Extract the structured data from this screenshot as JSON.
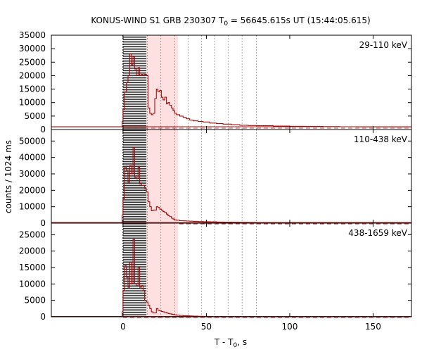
{
  "chart_data": {
    "type": "line",
    "title_main": "KONUS-WIND S1 GRB 230307 T",
    "title_sub": "0",
    "title_rest": " = 56645.615s UT (15:44:05.615)",
    "xlabel_main": "T - T",
    "xlabel_sub": "0",
    "xlabel_rest": ", s",
    "ylabel": "counts / 1024 ms",
    "xlim": [
      -43,
      173
    ],
    "xticks": [
      0,
      50,
      100,
      150
    ],
    "colors": {
      "series": "#a01010",
      "background_line": "#a01010",
      "shade": "#ffe0e0",
      "hatch": "#303030",
      "trigger_line": "#000000",
      "interval_lines": "#909090"
    },
    "intervals": {
      "hatch_range": [
        0,
        14
      ],
      "shade_range": [
        14,
        33
      ],
      "boundaries": [
        14.5,
        22.7,
        31,
        39,
        47,
        55,
        63,
        71.4,
        80
      ]
    },
    "panels": [
      {
        "label": "29-110 keV",
        "ylim": [
          0,
          35000
        ],
        "yticks": [
          0,
          5000,
          10000,
          15000,
          20000,
          25000,
          30000,
          35000
        ],
        "background": 1050,
        "t": [
          -43,
          -1,
          -0.5,
          0,
          1,
          2,
          3,
          4,
          5,
          6,
          7,
          8,
          9,
          10,
          11,
          12,
          13,
          14,
          15,
          16,
          17,
          18,
          19,
          20,
          21,
          22,
          23,
          24,
          25,
          26,
          27,
          28,
          29,
          30,
          31,
          32,
          34,
          36,
          38,
          40,
          42,
          45,
          48,
          52,
          56,
          60,
          65,
          70,
          75,
          80,
          90,
          100,
          110,
          120,
          130,
          140,
          173
        ],
        "counts": [
          1000,
          1000,
          3000,
          7500,
          14000,
          17500,
          20000,
          28000,
          24000,
          27000,
          22500,
          20000,
          23000,
          20000,
          20500,
          20000,
          20500,
          20000,
          8000,
          6000,
          5500,
          6000,
          11500,
          15000,
          14000,
          14500,
          12000,
          11000,
          12000,
          9500,
          10000,
          9000,
          8000,
          7000,
          6000,
          5500,
          5000,
          4500,
          4000,
          3500,
          3200,
          3000,
          2800,
          2400,
          2200,
          2000,
          1800,
          1600,
          1500,
          1400,
          1300,
          1200,
          1150,
          1100,
          1050,
          1000,
          1000
        ]
      },
      {
        "label": "110-438 keV",
        "ylim": [
          0,
          57000
        ],
        "yticks": [
          0,
          10000,
          20000,
          30000,
          40000,
          50000
        ],
        "background": 400,
        "t": [
          -43,
          -1,
          -0.5,
          0,
          1,
          2,
          3,
          4,
          5,
          6,
          7,
          8,
          9,
          10,
          11,
          12,
          13,
          14,
          15,
          16,
          17,
          18,
          19,
          20,
          21,
          22,
          23,
          24,
          25,
          26,
          27,
          28,
          29,
          30,
          31,
          32,
          34,
          36,
          38,
          40,
          42,
          45,
          48,
          52,
          56,
          60,
          65,
          70,
          75,
          80,
          90,
          100,
          110,
          120,
          130,
          140,
          173
        ],
        "counts": [
          400,
          400,
          5000,
          15000,
          34000,
          32000,
          25000,
          35000,
          30000,
          46000,
          28000,
          27000,
          34000,
          24000,
          23000,
          23000,
          21000,
          19000,
          13000,
          10000,
          7500,
          8000,
          8000,
          10000,
          9500,
          8500,
          8000,
          7000,
          6500,
          5500,
          4500,
          4000,
          3000,
          2500,
          2000,
          1800,
          1500,
          1400,
          1300,
          1200,
          1100,
          1000,
          900,
          800,
          700,
          600,
          550,
          500,
          450,
          420,
          400,
          400,
          400,
          400,
          400,
          400,
          400
        ]
      },
      {
        "label": "438-1659 keV",
        "ylim": [
          0,
          28500
        ],
        "yticks": [
          0,
          5000,
          10000,
          15000,
          20000,
          25000
        ],
        "background": 100,
        "t": [
          -43,
          -1,
          -0.5,
          0,
          1,
          2,
          3,
          4,
          5,
          6,
          7,
          8,
          9,
          10,
          11,
          12,
          13,
          14,
          15,
          16,
          17,
          18,
          19,
          20,
          21,
          22,
          23,
          24,
          25,
          26,
          27,
          28,
          29,
          30,
          31,
          32,
          34,
          36,
          38,
          40,
          42,
          45,
          48,
          52,
          56,
          60,
          65,
          70,
          75,
          80,
          90,
          100,
          110,
          120,
          130,
          140,
          173
        ],
        "counts": [
          100,
          100,
          1500,
          8000,
          15500,
          12000,
          9000,
          16500,
          10000,
          23500,
          10000,
          9500,
          15000,
          9000,
          9500,
          8000,
          5000,
          4500,
          3500,
          2500,
          1500,
          1200,
          1200,
          2500,
          2000,
          1800,
          1600,
          1500,
          1300,
          1200,
          1000,
          900,
          800,
          700,
          600,
          500,
          400,
          350,
          300,
          250,
          200,
          150,
          120,
          100,
          100,
          100,
          100,
          100,
          100,
          100,
          100,
          100,
          100,
          100,
          100,
          100,
          100
        ]
      }
    ]
  }
}
